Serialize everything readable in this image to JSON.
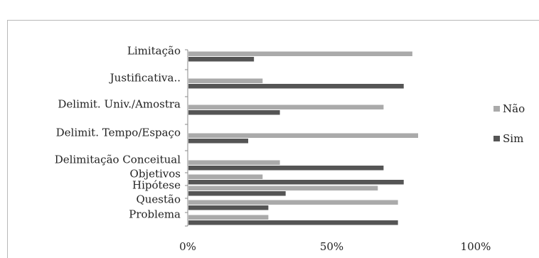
{
  "chart_data": {
    "type": "bar",
    "orientation": "horizontal",
    "categories": [
      "Problema",
      "Questão",
      "Hipótese",
      "Objetivos",
      "Delimitação Conceitual",
      "Delimit. Tempo/Espaço",
      "Delimit. Univ./Amostra",
      "Justificativa..",
      "Limitação"
    ],
    "series": [
      {
        "name": "Não",
        "color": "#aaaaaa",
        "values": [
          28,
          73,
          66,
          26,
          32,
          80,
          68,
          26,
          78
        ]
      },
      {
        "name": "Sim",
        "color": "#555555",
        "values": [
          73,
          28,
          34,
          75,
          68,
          21,
          32,
          75,
          23
        ]
      }
    ],
    "xlim": [
      0,
      100
    ],
    "xticks": [
      "0%",
      "50%",
      "100%"
    ],
    "legend": "right",
    "grid": false
  }
}
